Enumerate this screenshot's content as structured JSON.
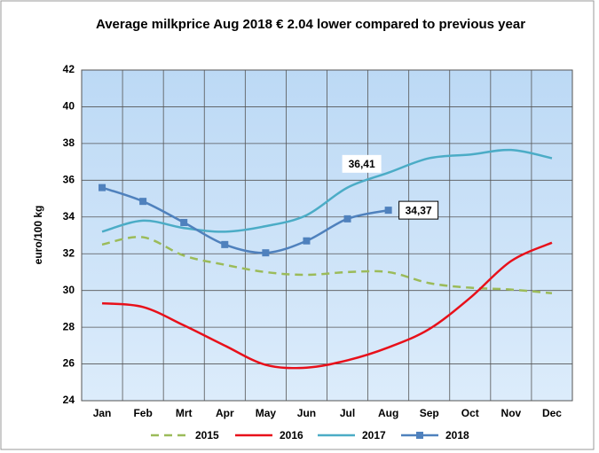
{
  "chart_data": {
    "type": "line",
    "title": "Average milkprice Aug 2018 € 2.04 lower compared to previous year",
    "y_label": "euro/100 kg",
    "categories": [
      "Jan",
      "Feb",
      "Mrt",
      "Apr",
      "May",
      "Jun",
      "Jul",
      "Aug",
      "Sep",
      "Oct",
      "Nov",
      "Dec"
    ],
    "series": [
      {
        "name": "2015",
        "color": "#9bbb59",
        "dashed": true,
        "values": [
          32.5,
          32.9,
          31.9,
          31.4,
          31.0,
          30.85,
          31.0,
          31.0,
          30.4,
          30.15,
          30.05,
          29.85
        ]
      },
      {
        "name": "2016",
        "color": "#e8101a",
        "values": [
          29.3,
          29.1,
          28.1,
          27.0,
          25.95,
          25.8,
          26.2,
          26.9,
          27.9,
          29.6,
          31.6,
          32.6
        ]
      },
      {
        "name": "2017",
        "color": "#4bacc6",
        "values": [
          33.2,
          33.8,
          33.4,
          33.2,
          33.5,
          34.1,
          35.6,
          36.41,
          37.2,
          37.4,
          37.65,
          37.2
        ],
        "value_labels": [
          null,
          null,
          null,
          null,
          null,
          null,
          null,
          "36,41",
          null,
          null,
          null,
          null
        ]
      },
      {
        "name": "2018",
        "color": "#4f81bd",
        "markers": true,
        "values": [
          35.6,
          34.85,
          33.7,
          32.5,
          32.05,
          32.7,
          33.9,
          34.37,
          null,
          null,
          null,
          null
        ],
        "value_labels": [
          null,
          null,
          null,
          null,
          null,
          null,
          null,
          "34,37",
          null,
          null,
          null,
          null
        ]
      }
    ],
    "ylim": [
      24,
      42
    ],
    "yticks": [
      24,
      26,
      28,
      30,
      32,
      34,
      36,
      38,
      40,
      42
    ],
    "grid": true
  }
}
